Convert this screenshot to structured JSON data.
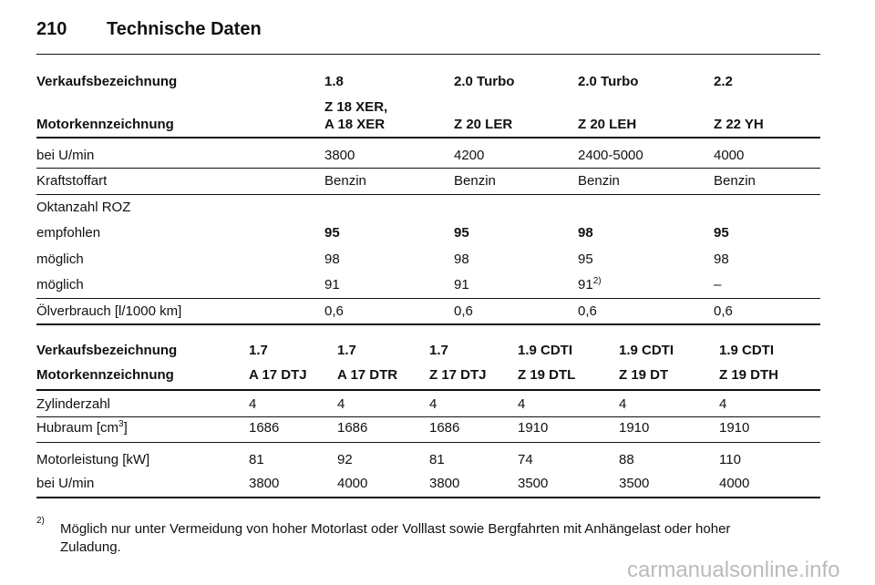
{
  "header": {
    "page_number": "210",
    "title": "Technische Daten"
  },
  "table1": {
    "rows": [
      [
        "Verkaufsbezeichnung",
        "1.8",
        "2.0 Turbo",
        "2.0 Turbo",
        "2.2"
      ],
      [
        "Motorkennzeichnung",
        {
          "lines": [
            "Z 18 XER,",
            "A 18 XER"
          ]
        },
        "Z 20 LER",
        "Z 20 LEH",
        "Z 22 YH"
      ],
      [
        "bei U/min",
        "3800",
        "4200",
        "2400-5000",
        "4000"
      ],
      [
        "Kraftstoffart",
        "Benzin",
        "Benzin",
        "Benzin",
        "Benzin"
      ],
      [
        "Oktanzahl ROZ"
      ],
      [
        "empfohlen",
        "95",
        "95",
        "98",
        "95"
      ],
      [
        "möglich",
        "98",
        "98",
        "95",
        "98"
      ],
      [
        "möglich",
        "91",
        "91",
        {
          "text": "91",
          "sup": "2)"
        },
        "–"
      ],
      [
        "Ölverbrauch [l/1000 km]",
        "0,6",
        "0,6",
        "0,6",
        "0,6"
      ]
    ]
  },
  "table2": {
    "rows": [
      [
        "Verkaufsbezeichnung",
        "1.7",
        "1.7",
        "1.7",
        "1.9 CDTI",
        "1.9 CDTI",
        "1.9 CDTI"
      ],
      [
        "Motorkennzeichnung",
        "A 17 DTJ",
        "A 17 DTR",
        "Z 17 DTJ",
        "Z 19 DTL",
        "Z 19 DT",
        "Z 19 DTH"
      ],
      [
        "Zylinderzahl",
        "4",
        "4",
        "4",
        "4",
        "4",
        "4"
      ],
      [
        {
          "text": "Hubraum [cm",
          "sup": "3",
          "after": "]"
        },
        "1686",
        "1686",
        "1686",
        "1910",
        "1910",
        "1910"
      ],
      [
        "Motorleistung [kW]",
        "81",
        "92",
        "81",
        "74",
        "88",
        "110"
      ],
      [
        "bei U/min",
        "3800",
        "4000",
        "3800",
        "3500",
        "3500",
        "4000"
      ]
    ]
  },
  "footnote": {
    "marker": "2)",
    "lines": [
      "Möglich nur unter Vermeidung von hoher Motorlast oder Volllast sowie Bergfahrten mit Anhängelast oder hoher",
      "Zuladung."
    ]
  },
  "watermark": "carmanualsonline.info"
}
